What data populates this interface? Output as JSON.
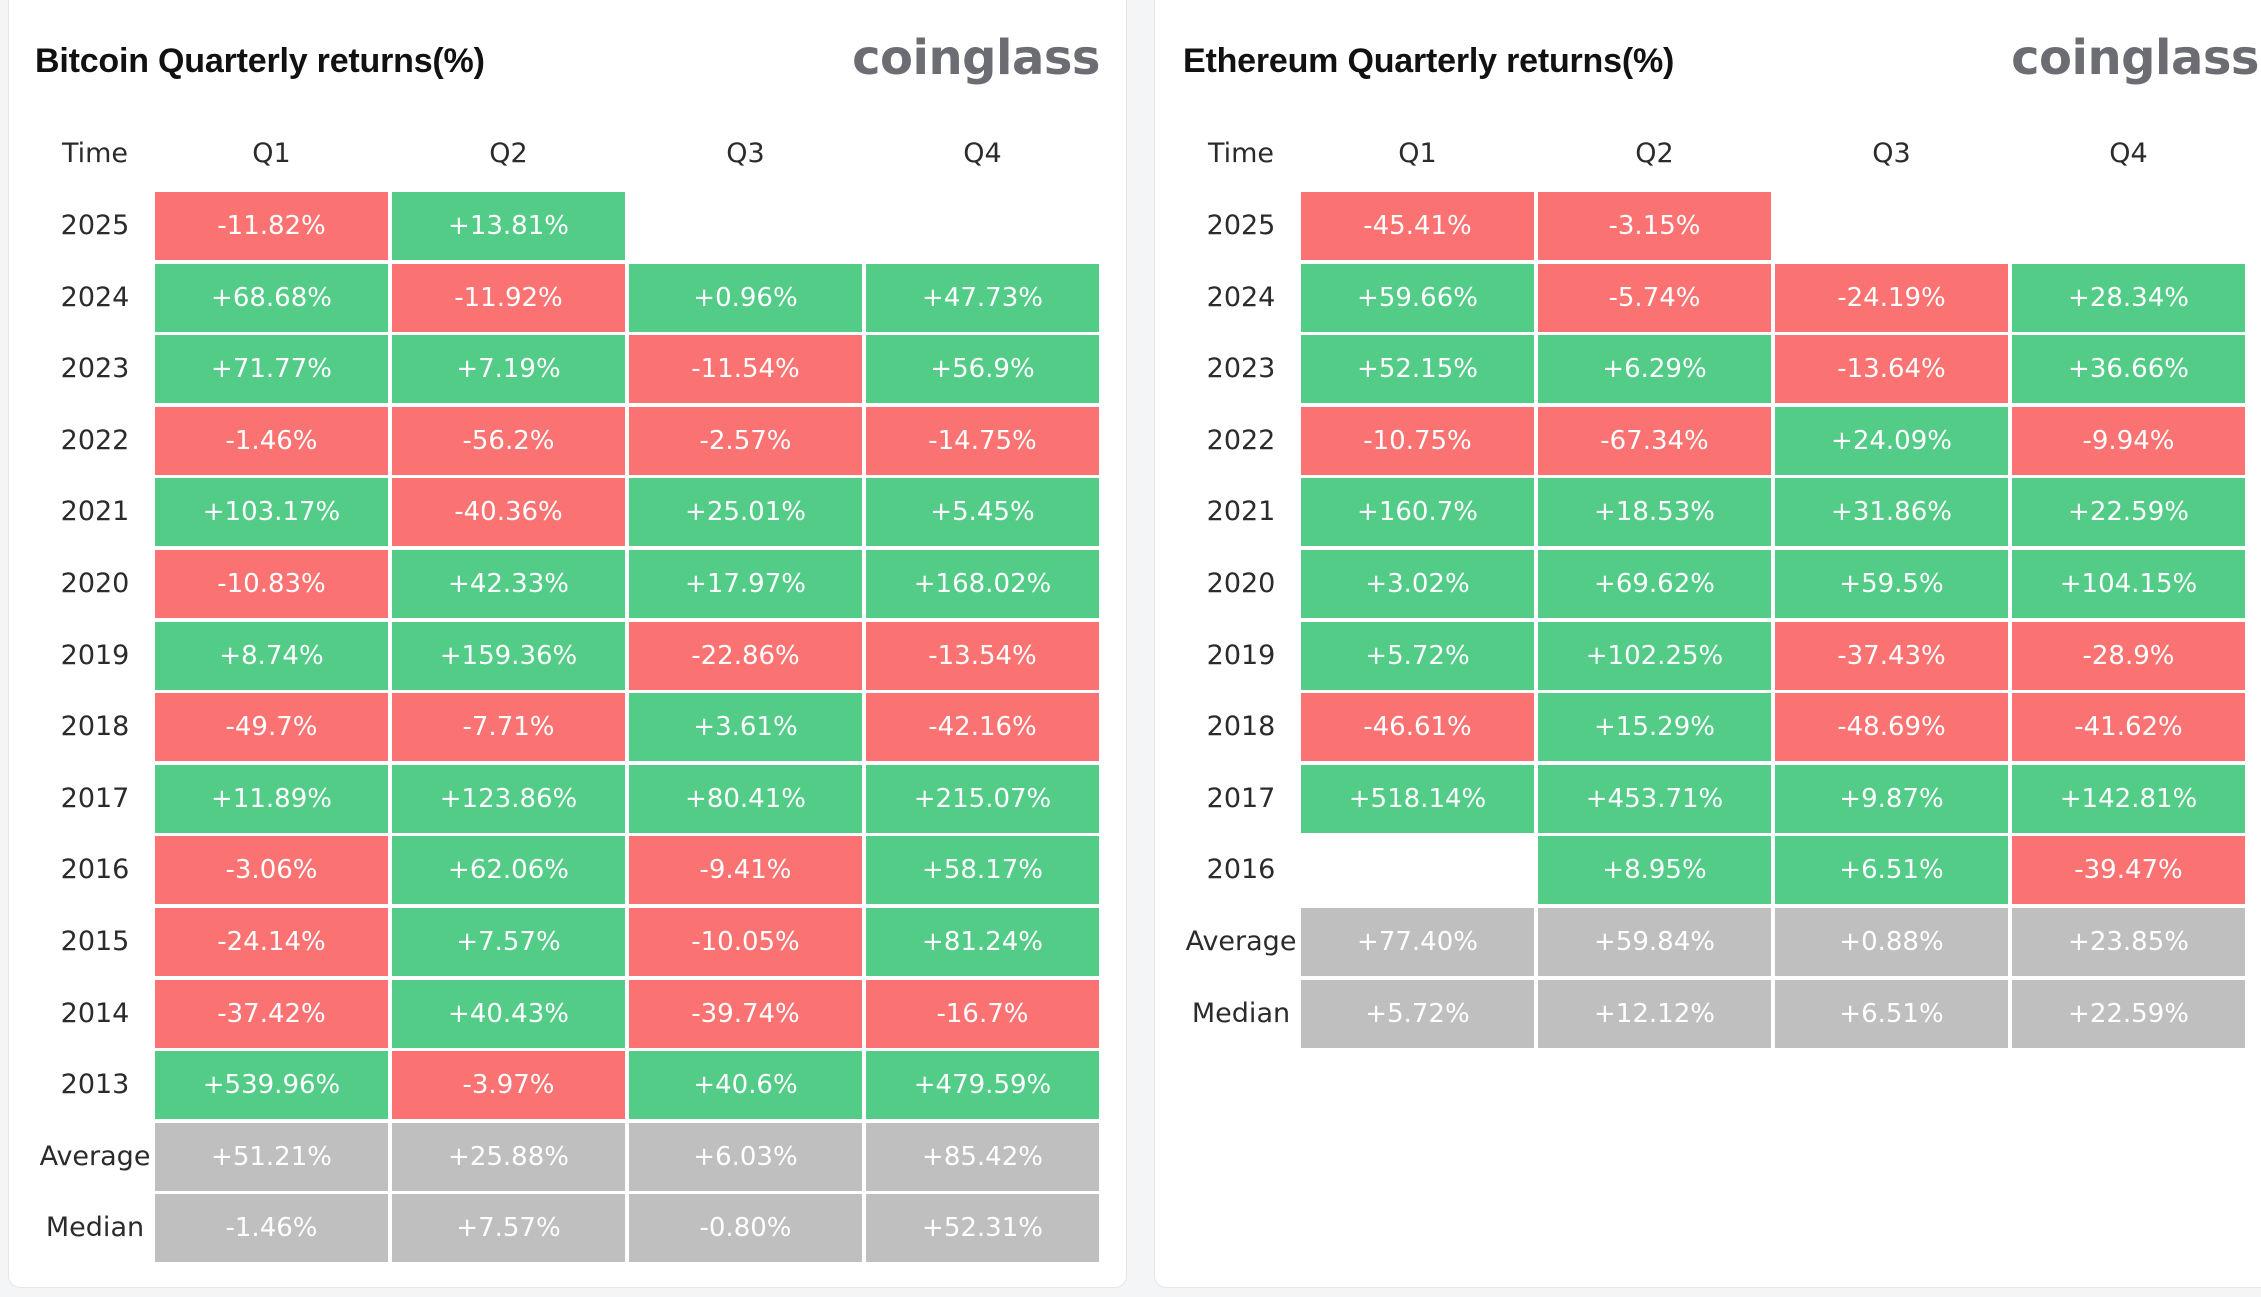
{
  "colors": {
    "positive": "#52cc87",
    "negative": "#fb7272",
    "summary": "#bfbfbf",
    "brand_text": "#6b6d72"
  },
  "btc": {
    "title": "Bitcoin Quarterly returns(%)",
    "brand": "coinglass"
  },
  "eth": {
    "title": "Ethereum Quarterly returns(%)",
    "brand": "coinglass"
  },
  "chart_data": [
    {
      "type": "table",
      "title": "Bitcoin Quarterly returns(%)",
      "columns": [
        "Time",
        "Q1",
        "Q2",
        "Q3",
        "Q4"
      ],
      "rows": [
        {
          "label": "2025",
          "values": [
            "-11.82%",
            "+13.81%",
            "",
            ""
          ]
        },
        {
          "label": "2024",
          "values": [
            "+68.68%",
            "-11.92%",
            "+0.96%",
            "+47.73%"
          ]
        },
        {
          "label": "2023",
          "values": [
            "+71.77%",
            "+7.19%",
            "-11.54%",
            "+56.9%"
          ]
        },
        {
          "label": "2022",
          "values": [
            "-1.46%",
            "-56.2%",
            "-2.57%",
            "-14.75%"
          ]
        },
        {
          "label": "2021",
          "values": [
            "+103.17%",
            "-40.36%",
            "+25.01%",
            "+5.45%"
          ]
        },
        {
          "label": "2020",
          "values": [
            "-10.83%",
            "+42.33%",
            "+17.97%",
            "+168.02%"
          ]
        },
        {
          "label": "2019",
          "values": [
            "+8.74%",
            "+159.36%",
            "-22.86%",
            "-13.54%"
          ]
        },
        {
          "label": "2018",
          "values": [
            "-49.7%",
            "-7.71%",
            "+3.61%",
            "-42.16%"
          ]
        },
        {
          "label": "2017",
          "values": [
            "+11.89%",
            "+123.86%",
            "+80.41%",
            "+215.07%"
          ]
        },
        {
          "label": "2016",
          "values": [
            "-3.06%",
            "+62.06%",
            "-9.41%",
            "+58.17%"
          ]
        },
        {
          "label": "2015",
          "values": [
            "-24.14%",
            "+7.57%",
            "-10.05%",
            "+81.24%"
          ]
        },
        {
          "label": "2014",
          "values": [
            "-37.42%",
            "+40.43%",
            "-39.74%",
            "-16.7%"
          ]
        },
        {
          "label": "2013",
          "values": [
            "+539.96%",
            "-3.97%",
            "+40.6%",
            "+479.59%"
          ]
        },
        {
          "label": "Average",
          "values": [
            "+51.21%",
            "+25.88%",
            "+6.03%",
            "+85.42%"
          ],
          "summary": true
        },
        {
          "label": "Median",
          "values": [
            "-1.46%",
            "+7.57%",
            "-0.80%",
            "+52.31%"
          ],
          "summary": true
        }
      ]
    },
    {
      "type": "table",
      "title": "Ethereum Quarterly returns(%)",
      "columns": [
        "Time",
        "Q1",
        "Q2",
        "Q3",
        "Q4"
      ],
      "rows": [
        {
          "label": "2025",
          "values": [
            "-45.41%",
            "-3.15%",
            "",
            ""
          ]
        },
        {
          "label": "2024",
          "values": [
            "+59.66%",
            "-5.74%",
            "-24.19%",
            "+28.34%"
          ]
        },
        {
          "label": "2023",
          "values": [
            "+52.15%",
            "+6.29%",
            "-13.64%",
            "+36.66%"
          ]
        },
        {
          "label": "2022",
          "values": [
            "-10.75%",
            "-67.34%",
            "+24.09%",
            "-9.94%"
          ]
        },
        {
          "label": "2021",
          "values": [
            "+160.7%",
            "+18.53%",
            "+31.86%",
            "+22.59%"
          ]
        },
        {
          "label": "2020",
          "values": [
            "+3.02%",
            "+69.62%",
            "+59.5%",
            "+104.15%"
          ]
        },
        {
          "label": "2019",
          "values": [
            "+5.72%",
            "+102.25%",
            "-37.43%",
            "-28.9%"
          ]
        },
        {
          "label": "2018",
          "values": [
            "-46.61%",
            "+15.29%",
            "-48.69%",
            "-41.62%"
          ]
        },
        {
          "label": "2017",
          "values": [
            "+518.14%",
            "+453.71%",
            "+9.87%",
            "+142.81%"
          ]
        },
        {
          "label": "2016",
          "values": [
            "",
            "+8.95%",
            "+6.51%",
            "-39.47%"
          ]
        },
        {
          "label": "Average",
          "values": [
            "+77.40%",
            "+59.84%",
            "+0.88%",
            "+23.85%"
          ],
          "summary": true
        },
        {
          "label": "Median",
          "values": [
            "+5.72%",
            "+12.12%",
            "+6.51%",
            "+22.59%"
          ],
          "summary": true
        }
      ]
    }
  ]
}
